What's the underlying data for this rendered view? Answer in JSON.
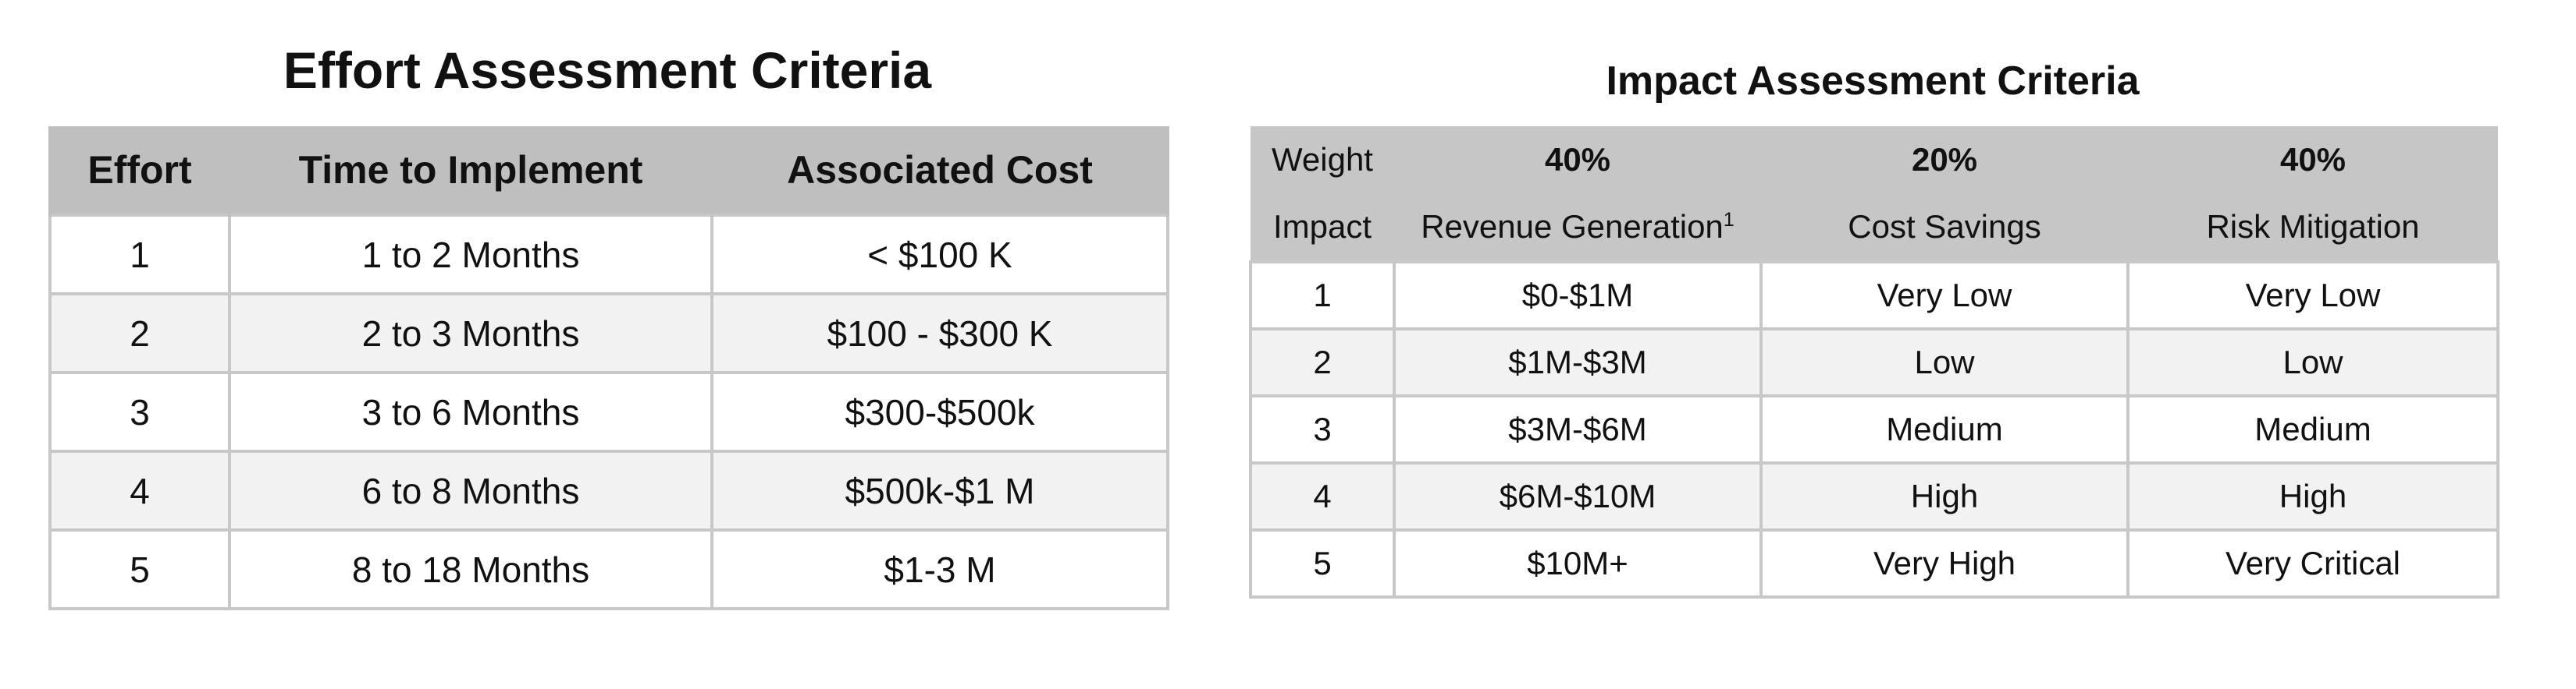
{
  "effort": {
    "title": "Effort Assessment Criteria",
    "columns": [
      "Effort",
      "Time to Implement",
      "Associated Cost"
    ],
    "rows": [
      [
        "1",
        "1 to 2 Months",
        "< $100 K"
      ],
      [
        "2",
        "2 to 3 Months",
        "$100 - $300 K"
      ],
      [
        "3",
        "3 to 6 Months",
        "$300-$500k"
      ],
      [
        "4",
        "6 to 8 Months",
        "$500k-$1 M"
      ],
      [
        "5",
        "8 to 18 Months",
        "$1-3 M"
      ]
    ]
  },
  "impact": {
    "title": "Impact Assessment Criteria",
    "weight_row": [
      "Weight",
      "40%",
      "20%",
      "40%"
    ],
    "header_row": [
      "Impact",
      "Revenue Generation",
      "Cost Savings",
      "Risk Mitigation"
    ],
    "footnote_marker": "1",
    "rows": [
      [
        "1",
        "$0-$1M",
        "Very Low",
        "Very Low"
      ],
      [
        "2",
        "$1M-$3M",
        "Low",
        "Low"
      ],
      [
        "3",
        "$3M-$6M",
        "Medium",
        "Medium"
      ],
      [
        "4",
        "$6M-$10M",
        "High",
        "High"
      ],
      [
        "5",
        "$10M+",
        "Very High",
        "Very Critical"
      ]
    ]
  }
}
